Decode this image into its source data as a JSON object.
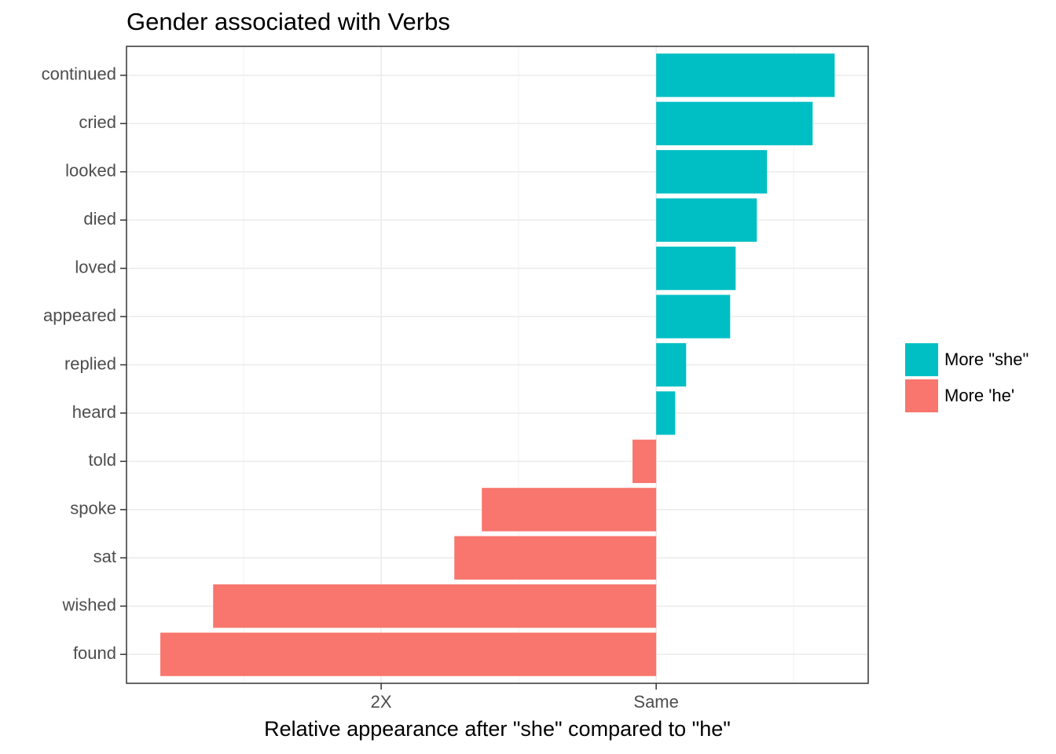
{
  "chart_data": {
    "type": "bar",
    "orientation": "horizontal",
    "title": "Gender associated with Verbs",
    "x_label": "Relative appearance after \"she\" compared to \"he\"",
    "categories": [
      "continued",
      "cried",
      "looked",
      "died",
      "loved",
      "appeared",
      "replied",
      "heard",
      "told",
      "spoke",
      "sat",
      "wished",
      "found"
    ],
    "series": [
      {
        "name": "More \"she\"",
        "color": "#00bfc4",
        "values": [
          0.649,
          0.569,
          0.403,
          0.366,
          0.289,
          0.269,
          0.109,
          0.069,
          null,
          null,
          null,
          null,
          null
        ]
      },
      {
        "name": "More 'he'",
        "color": "#f8766d",
        "values": [
          null,
          null,
          null,
          null,
          null,
          null,
          null,
          null,
          -0.086,
          -0.634,
          -0.734,
          -1.611,
          -1.803
        ]
      }
    ],
    "xlim": [
      -1.926,
      0.771
    ],
    "xticks": [
      {
        "value": -1,
        "label": "2X"
      },
      {
        "value": 0,
        "label": "Same"
      }
    ],
    "x_minor_ticks": [
      -1.5,
      -0.5,
      0.5
    ],
    "grid": true,
    "legend": "right"
  }
}
